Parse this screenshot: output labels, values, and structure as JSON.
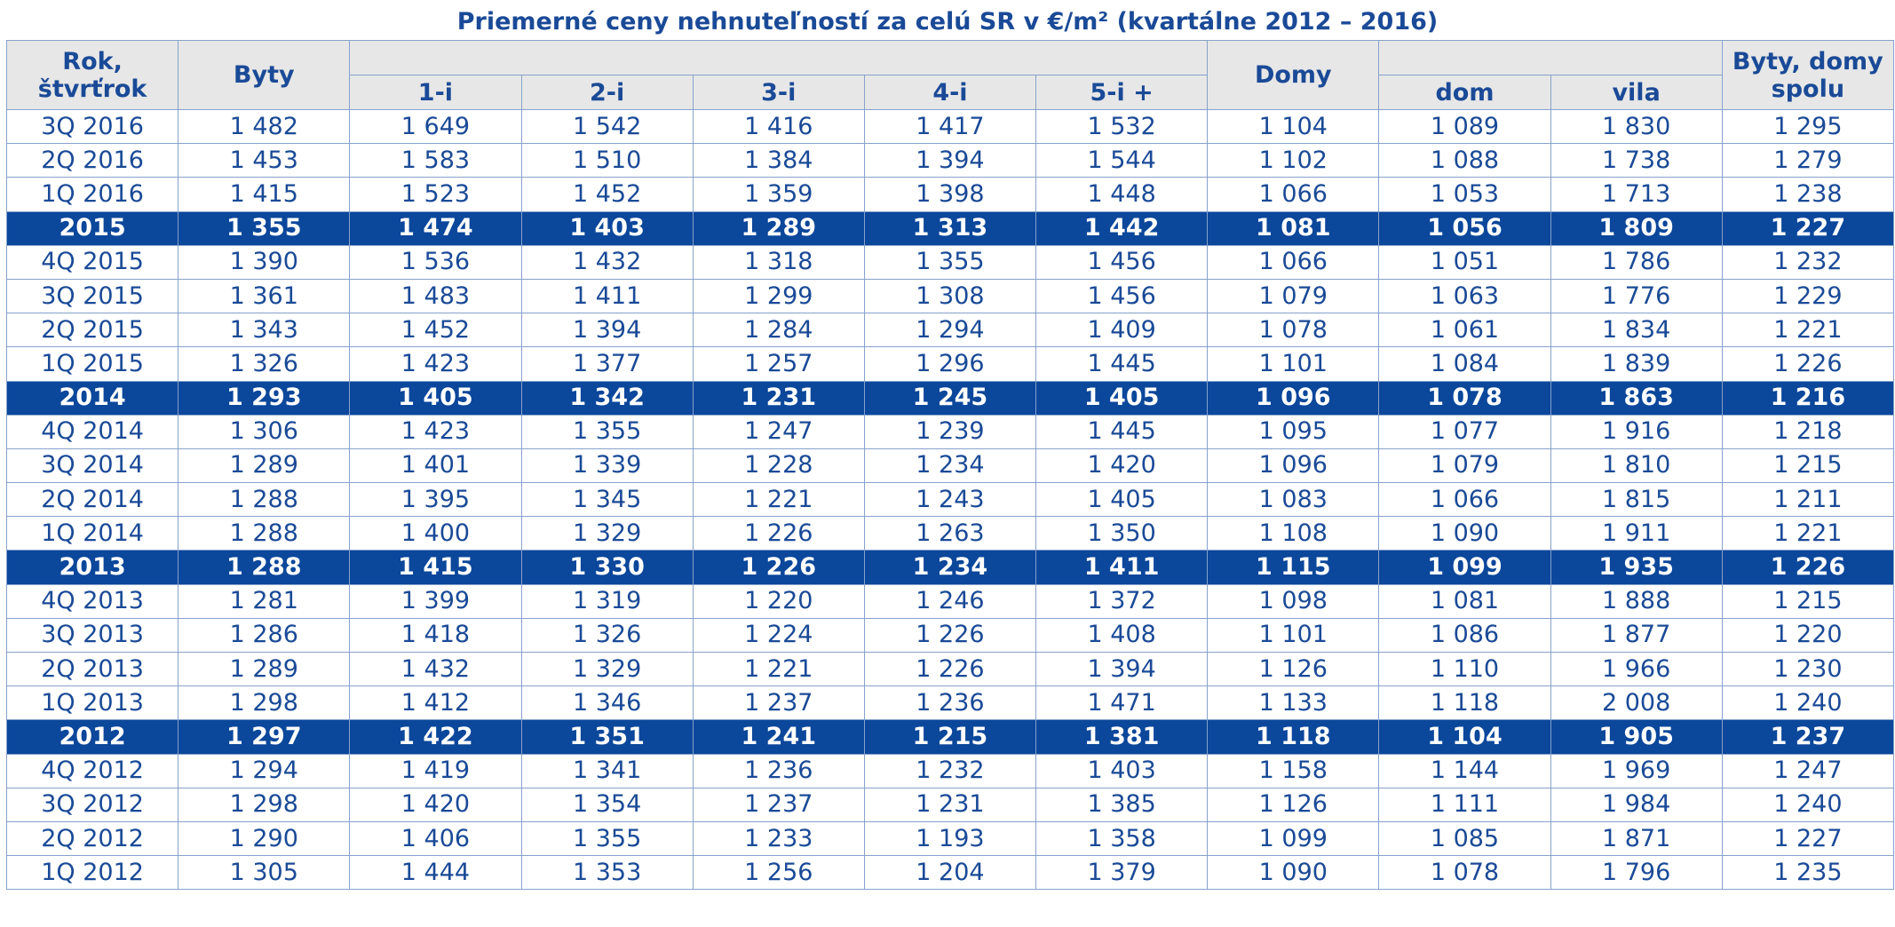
{
  "title": "Priemerné ceny nehnuteľností za celú SR v €/m² (kvartálne 2012 – 2016)",
  "header": {
    "period": "Rok, štvrťrok",
    "flats": "Byty",
    "flat_types": [
      "1-i",
      "2-i",
      "3-i",
      "4-i",
      "5-i +"
    ],
    "houses": "Domy",
    "house_types": [
      "dom",
      "vila"
    ],
    "total": "Byty, domy spolu"
  },
  "rows": [
    {
      "highlight": false,
      "cells": [
        "3Q 2016",
        "1 482",
        "1 649",
        "1 542",
        "1 416",
        "1 417",
        "1 532",
        "1 104",
        "1 089",
        "1 830",
        "1 295"
      ]
    },
    {
      "highlight": false,
      "cells": [
        "2Q 2016",
        "1 453",
        "1 583",
        "1 510",
        "1 384",
        "1 394",
        "1 544",
        "1 102",
        "1 088",
        "1 738",
        "1 279"
      ]
    },
    {
      "highlight": false,
      "cells": [
        "1Q 2016",
        "1 415",
        "1 523",
        "1 452",
        "1 359",
        "1 398",
        "1 448",
        "1 066",
        "1 053",
        "1 713",
        "1 238"
      ]
    },
    {
      "highlight": true,
      "cells": [
        "2015",
        "1 355",
        "1 474",
        "1 403",
        "1 289",
        "1 313",
        "1 442",
        "1 081",
        "1 056",
        "1 809",
        "1 227"
      ]
    },
    {
      "highlight": false,
      "cells": [
        "4Q 2015",
        "1 390",
        "1 536",
        "1 432",
        "1 318",
        "1 355",
        "1 456",
        "1 066",
        "1 051",
        "1 786",
        "1 232"
      ]
    },
    {
      "highlight": false,
      "cells": [
        "3Q 2015",
        "1 361",
        "1 483",
        "1 411",
        "1 299",
        "1 308",
        "1 456",
        "1 079",
        "1 063",
        "1 776",
        "1 229"
      ]
    },
    {
      "highlight": false,
      "cells": [
        "2Q 2015",
        "1 343",
        "1 452",
        "1 394",
        "1 284",
        "1 294",
        "1 409",
        "1 078",
        "1 061",
        "1 834",
        "1 221"
      ]
    },
    {
      "highlight": false,
      "cells": [
        "1Q 2015",
        "1 326",
        "1 423",
        "1 377",
        "1 257",
        "1 296",
        "1 445",
        "1 101",
        "1 084",
        "1 839",
        "1 226"
      ]
    },
    {
      "highlight": true,
      "cells": [
        "2014",
        "1 293",
        "1 405",
        "1 342",
        "1 231",
        "1 245",
        "1 405",
        "1 096",
        "1 078",
        "1 863",
        "1 216"
      ]
    },
    {
      "highlight": false,
      "cells": [
        "4Q 2014",
        "1 306",
        "1 423",
        "1 355",
        "1 247",
        "1 239",
        "1 445",
        "1 095",
        "1 077",
        "1 916",
        "1 218"
      ]
    },
    {
      "highlight": false,
      "cells": [
        "3Q 2014",
        "1 289",
        "1 401",
        "1 339",
        "1 228",
        "1 234",
        "1 420",
        "1 096",
        "1 079",
        "1 810",
        "1 215"
      ]
    },
    {
      "highlight": false,
      "cells": [
        "2Q 2014",
        "1 288",
        "1 395",
        "1 345",
        "1 221",
        "1 243",
        "1 405",
        "1 083",
        "1 066",
        "1 815",
        "1 211"
      ]
    },
    {
      "highlight": false,
      "cells": [
        "1Q 2014",
        "1 288",
        "1 400",
        "1 329",
        "1 226",
        "1 263",
        "1 350",
        "1 108",
        "1 090",
        "1 911",
        "1 221"
      ]
    },
    {
      "highlight": true,
      "cells": [
        "2013",
        "1 288",
        "1 415",
        "1 330",
        "1 226",
        "1 234",
        "1 411",
        "1 115",
        "1 099",
        "1 935",
        "1 226"
      ]
    },
    {
      "highlight": false,
      "cells": [
        "4Q 2013",
        "1 281",
        "1 399",
        "1 319",
        "1 220",
        "1 246",
        "1 372",
        "1 098",
        "1 081",
        "1 888",
        "1 215"
      ]
    },
    {
      "highlight": false,
      "cells": [
        "3Q 2013",
        "1 286",
        "1 418",
        "1 326",
        "1 224",
        "1 226",
        "1 408",
        "1 101",
        "1 086",
        "1 877",
        "1 220"
      ]
    },
    {
      "highlight": false,
      "cells": [
        "2Q 2013",
        "1 289",
        "1 432",
        "1 329",
        "1 221",
        "1 226",
        "1 394",
        "1 126",
        "1 110",
        "1 966",
        "1 230"
      ]
    },
    {
      "highlight": false,
      "cells": [
        "1Q 2013",
        "1 298",
        "1 412",
        "1 346",
        "1 237",
        "1 236",
        "1 471",
        "1 133",
        "1 118",
        "2 008",
        "1 240"
      ]
    },
    {
      "highlight": true,
      "cells": [
        "2012",
        "1 297",
        "1 422",
        "1 351",
        "1 241",
        "1 215",
        "1 381",
        "1 118",
        "1 104",
        "1 905",
        "1 237"
      ]
    },
    {
      "highlight": false,
      "cells": [
        "4Q 2012",
        "1 294",
        "1 419",
        "1 341",
        "1 236",
        "1 232",
        "1 403",
        "1 158",
        "1 144",
        "1 969",
        "1 247"
      ]
    },
    {
      "highlight": false,
      "cells": [
        "3Q 2012",
        "1 298",
        "1 420",
        "1 354",
        "1 237",
        "1 231",
        "1 385",
        "1 126",
        "1 111",
        "1 984",
        "1 240"
      ]
    },
    {
      "highlight": false,
      "cells": [
        "2Q 2012",
        "1 290",
        "1 406",
        "1 355",
        "1 233",
        "1 193",
        "1 358",
        "1 099",
        "1 085",
        "1 871",
        "1 227"
      ]
    },
    {
      "highlight": false,
      "cells": [
        "1Q 2012",
        "1 305",
        "1 444",
        "1 353",
        "1 256",
        "1 204",
        "1 379",
        "1 090",
        "1 078",
        "1 796",
        "1 235"
      ]
    }
  ]
}
